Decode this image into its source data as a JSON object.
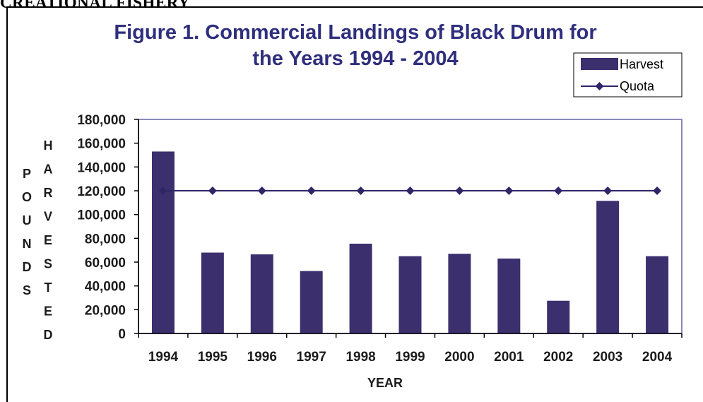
{
  "page_header": "CREATIONAL FISHERY",
  "chart_data": {
    "type": "bar",
    "title_lines": [
      "Figure 1.  Commercial Landings of Black Drum for",
      "the Years 1994 - 2004"
    ],
    "categories": [
      "1994",
      "1995",
      "1996",
      "1997",
      "1998",
      "1999",
      "2000",
      "2001",
      "2002",
      "2003",
      "2004"
    ],
    "series": [
      {
        "name": "Harvest",
        "kind": "bar",
        "color": "#3b2f6e",
        "values": [
          153000,
          68000,
          66500,
          52500,
          75500,
          65000,
          67000,
          63000,
          27500,
          111500,
          65000
        ]
      },
      {
        "name": "Quota",
        "kind": "line",
        "marker": "diamond",
        "color": "#2e2668",
        "values": [
          120000,
          120000,
          120000,
          120000,
          120000,
          120000,
          120000,
          120000,
          120000,
          120000,
          120000
        ]
      }
    ],
    "ylim": [
      0,
      180000
    ],
    "yticks": [
      "0",
      "20,000",
      "40,000",
      "60,000",
      "80,000",
      "100,000",
      "120,000",
      "140,000",
      "160,000",
      "180,000"
    ],
    "ylabel_outer": [
      "P",
      "O",
      "U",
      "N",
      "D",
      "S"
    ],
    "ylabel_inner": [
      "H",
      "A",
      "R",
      "V",
      "E",
      "S",
      "T",
      "E",
      "D"
    ],
    "xlabel": "YEAR",
    "legend_position": "top-right",
    "grid": false,
    "plot_border_color": "#8a8ab8"
  }
}
